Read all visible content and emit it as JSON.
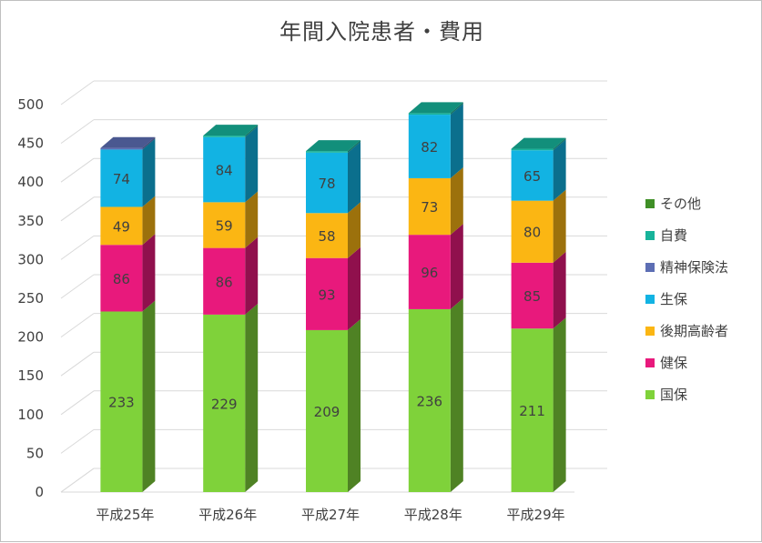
{
  "title": "年間入院患者・費用",
  "chart_data": {
    "type": "bar",
    "stacked": true,
    "style": "3d-column",
    "categories": [
      "平成25年",
      "平成26年",
      "平成27年",
      "平成28年",
      "平成29年"
    ],
    "ylim": [
      0,
      500
    ],
    "yticks": [
      0,
      50,
      100,
      150,
      200,
      250,
      300,
      350,
      400,
      450,
      500
    ],
    "grid": true,
    "legend_position": "right",
    "series": [
      {
        "name": "国保",
        "color": "#7fd23a",
        "values": [
          233,
          229,
          209,
          236,
          211
        ],
        "labels": [
          "233",
          "229",
          "209",
          "236",
          "211"
        ]
      },
      {
        "name": "健保",
        "color": "#e8197c",
        "values": [
          86,
          86,
          93,
          96,
          85
        ],
        "labels": [
          "86",
          "86",
          "93",
          "96",
          "85"
        ]
      },
      {
        "name": "後期高齢者",
        "color": "#fbb613",
        "values": [
          49,
          59,
          58,
          73,
          80
        ],
        "labels": [
          "49",
          "59",
          "58",
          "73",
          "80"
        ]
      },
      {
        "name": "生保",
        "color": "#12b3e3",
        "values": [
          74,
          84,
          78,
          82,
          65
        ],
        "labels": [
          "74",
          "84",
          "78",
          "82",
          "65"
        ]
      },
      {
        "name": "精神保険法",
        "color": "#5d6eb4",
        "values": [
          2,
          0,
          0,
          0,
          0
        ],
        "labels": [
          "",
          "",
          "",
          "",
          ""
        ]
      },
      {
        "name": "自費",
        "color": "#17b39a",
        "values": [
          0,
          2,
          2,
          2,
          2
        ],
        "labels": [
          "",
          "",
          "",
          "",
          ""
        ]
      },
      {
        "name": "その他",
        "color": "#3f8f26",
        "values": [
          0,
          0,
          0,
          0,
          0
        ],
        "labels": [
          "",
          "",
          "",
          "",
          ""
        ]
      }
    ],
    "legend_order": [
      "その他",
      "自費",
      "精神保険法",
      "生保",
      "後期高齢者",
      "健保",
      "国保"
    ]
  }
}
